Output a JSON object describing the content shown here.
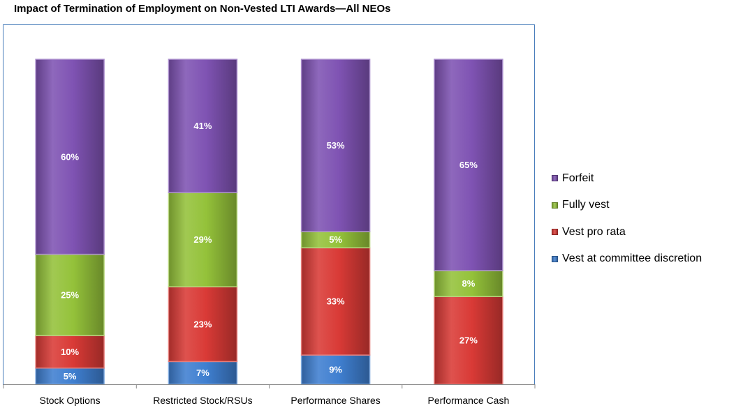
{
  "chart_data": {
    "type": "bar",
    "stacked": true,
    "title": "Impact of Termination of Employment on Non-Vested LTI Awards—All NEOs",
    "xlabel": "",
    "ylabel": "",
    "ylim": [
      0,
      100
    ],
    "grid": false,
    "legend_position": "right",
    "categories": [
      "Stock Options",
      "Restricted Stock/RSUs",
      "Performance Shares",
      "Performance Cash"
    ],
    "series": [
      {
        "name": "Vest at committee discretion",
        "color": "#3f7fd0",
        "values": [
          5,
          7,
          9,
          0
        ],
        "labels": [
          "5%",
          "7%",
          "9%",
          ""
        ]
      },
      {
        "name": "Vest pro rata",
        "color": "#d93a36",
        "values": [
          10,
          23,
          33,
          27
        ],
        "labels": [
          "10%",
          "23%",
          "33%",
          "27%"
        ]
      },
      {
        "name": "Fully vest",
        "color": "#94c23a",
        "values": [
          25,
          29,
          5,
          8
        ],
        "labels": [
          "25%",
          "29%",
          "5%",
          "8%"
        ]
      },
      {
        "name": "Forfeit",
        "color": "#7f53b3",
        "values": [
          60,
          41,
          53,
          65
        ],
        "labels": [
          "60%",
          "41%",
          "53%",
          "65%"
        ]
      }
    ],
    "legend_order": [
      "Forfeit",
      "Fully vest",
      "Vest pro rata",
      "Vest at committee discretion"
    ]
  }
}
